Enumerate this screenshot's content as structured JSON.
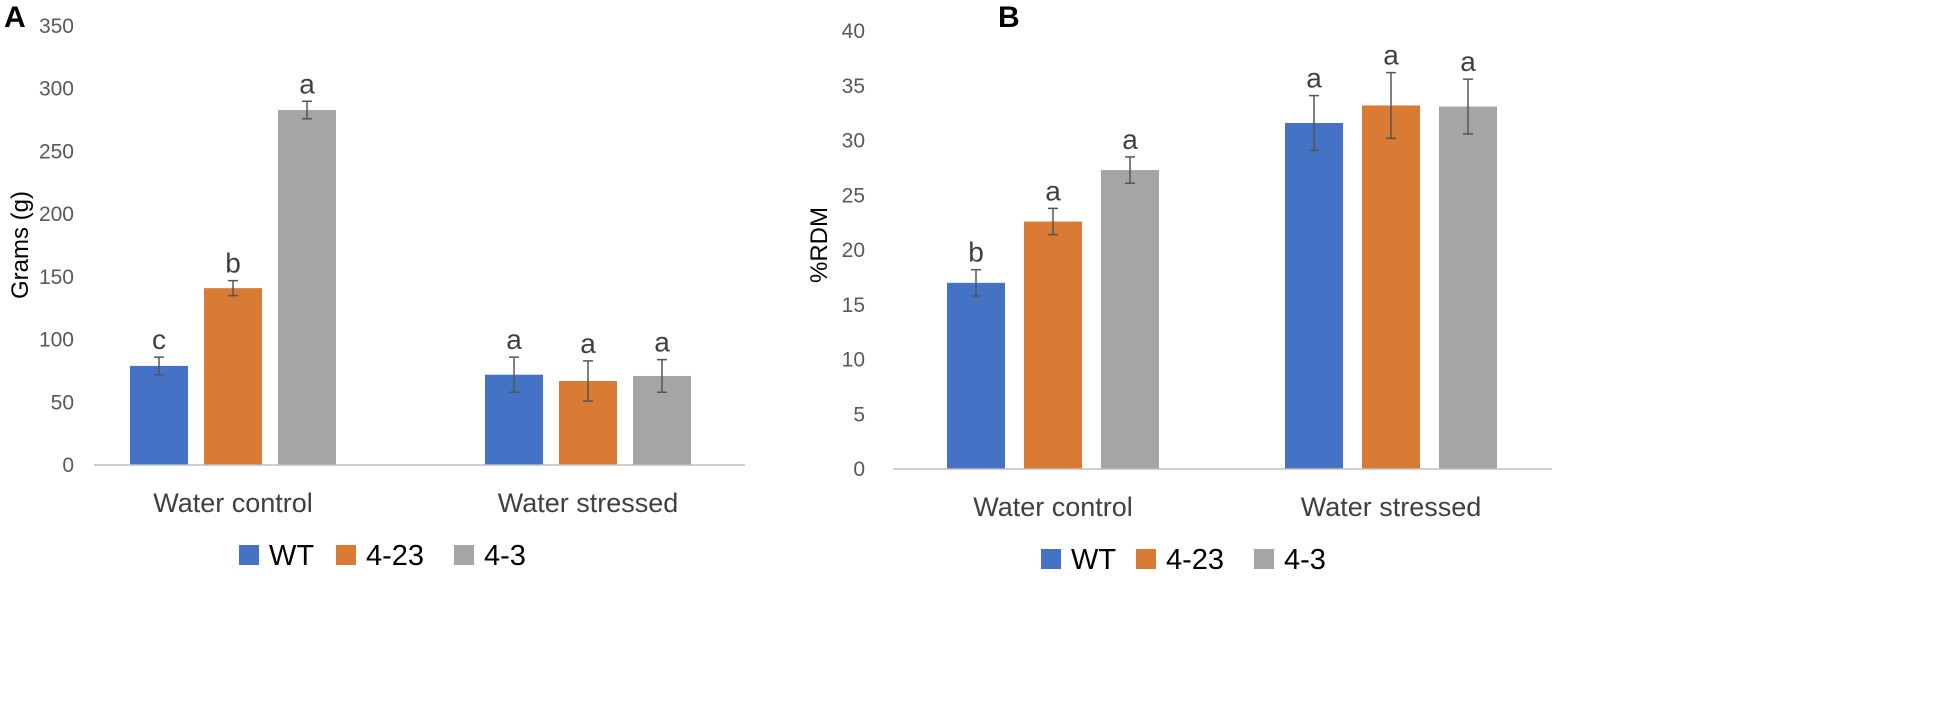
{
  "colors": {
    "WT": "#4472c4",
    "4-23": "#d97a35",
    "4-3": "#a5a5a5"
  },
  "legend": [
    "WT",
    "4-23",
    "4-3"
  ],
  "chart_data": [
    {
      "panel": "A",
      "type": "bar",
      "title": "",
      "ylabel": "Grams (g)",
      "xlabel": "",
      "categories": [
        "Water control",
        "Water stressed"
      ],
      "ylim": [
        0,
        350
      ],
      "yticks": [
        0,
        50,
        100,
        150,
        200,
        250,
        300,
        350
      ],
      "yticklabels": [
        "0",
        "50",
        "100",
        "150",
        "200",
        "250",
        "300",
        "350"
      ],
      "grid": false,
      "legend_position": "bottom",
      "series": [
        {
          "name": "WT",
          "values": [
            79,
            72
          ],
          "errors": [
            7,
            14
          ],
          "letters": [
            "c",
            "a"
          ]
        },
        {
          "name": "4-23",
          "values": [
            141,
            67
          ],
          "errors": [
            6,
            16
          ],
          "letters": [
            "b",
            "a"
          ]
        },
        {
          "name": "4-3",
          "values": [
            283,
            71
          ],
          "errors": [
            7,
            13
          ],
          "letters": [
            "a",
            "a"
          ]
        }
      ]
    },
    {
      "panel": "B",
      "type": "bar",
      "title": "",
      "ylabel": "%RDM",
      "xlabel": "",
      "categories": [
        "Water control",
        "Water stressed"
      ],
      "ylim": [
        0,
        40
      ],
      "yticks": [
        0,
        5,
        10,
        15,
        20,
        25,
        30,
        35,
        40
      ],
      "yticklabels": [
        "0",
        "5",
        "10",
        "15",
        "20",
        "25",
        "30",
        "35",
        "40"
      ],
      "grid": false,
      "legend_position": "bottom",
      "series": [
        {
          "name": "WT",
          "values": [
            17.0,
            31.6
          ],
          "errors": [
            1.2,
            2.5
          ],
          "letters": [
            "b",
            "a"
          ]
        },
        {
          "name": "4-23",
          "values": [
            22.6,
            33.2
          ],
          "errors": [
            1.2,
            3.0
          ],
          "letters": [
            "a",
            "a"
          ]
        },
        {
          "name": "4-3",
          "values": [
            27.3,
            33.1
          ],
          "errors": [
            1.2,
            2.5
          ],
          "letters": [
            "a",
            "a"
          ]
        }
      ]
    }
  ]
}
